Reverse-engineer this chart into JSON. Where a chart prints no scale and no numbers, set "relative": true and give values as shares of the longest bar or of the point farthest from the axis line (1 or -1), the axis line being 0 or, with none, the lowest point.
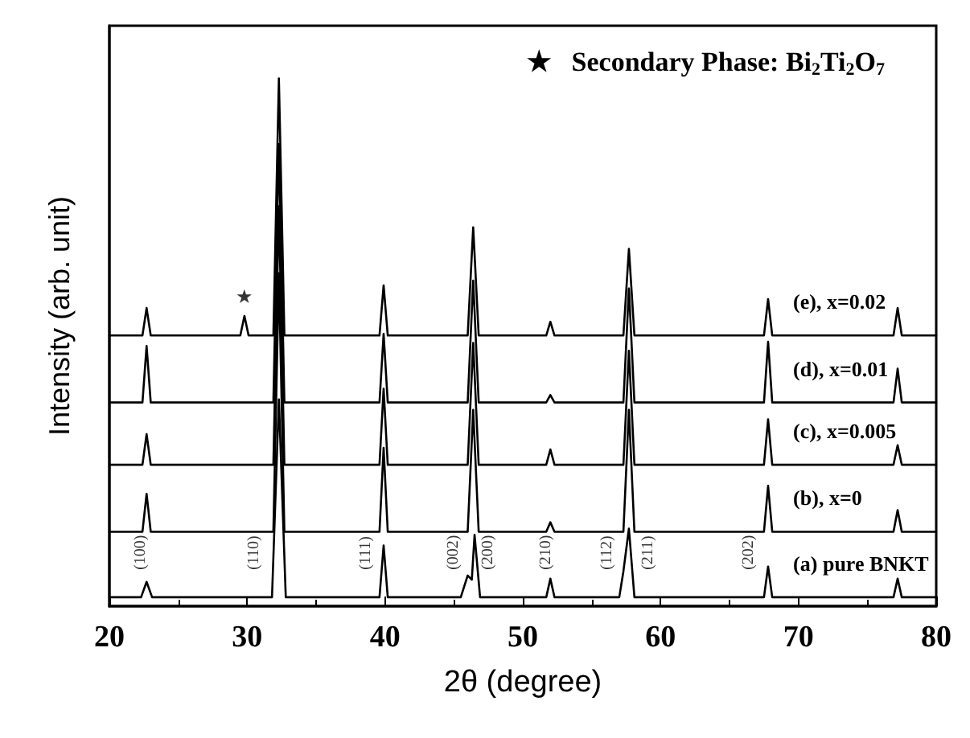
{
  "chart_data": {
    "type": "line",
    "xlabel": "2θ (degree)",
    "ylabel": "Intensity (arb. unit)",
    "xlim": [
      20,
      80
    ],
    "xticks": [
      20,
      30,
      40,
      50,
      60,
      70,
      80
    ],
    "relative": true,
    "tick_labels": "x",
    "legend": false,
    "grid": false,
    "marker": "none",
    "line_style": "solid",
    "annotations": [
      "★   Secondary Phase: Bi$_{2}$Ti$_{2}$O$_{7}$",
      {
        "text": "★",
        "x": 29.8,
        "y": 0.55
      },
      {
        "text": "(100)",
        "x": 22.3,
        "y": 0.017
      },
      {
        "text": "(110)",
        "x": 30.5,
        "y": 0.017
      },
      {
        "text": "(111)",
        "x": 38.6,
        "y": 0.017
      },
      {
        "text": "(002)",
        "x": 45.0,
        "y": 0.017
      },
      {
        "text": "(200)",
        "x": 47.5,
        "y": 0.017
      },
      {
        "text": "(210)",
        "x": 51.7,
        "y": 0.017
      },
      {
        "text": "(112)",
        "x": 56.1,
        "y": 0.017
      },
      {
        "text": "(211)",
        "x": 59.1,
        "y": 0.017
      },
      {
        "text": "(202)",
        "x": 66.4,
        "y": 0.017
      }
    ],
    "series": [
      {
        "name": "(e), x=0.02",
        "color": "#000000",
        "x": [
          20,
          22.4,
          22.7,
          23.0,
          29.5,
          29.8,
          30.1,
          31.9,
          32.3,
          32.7,
          39.6,
          39.9,
          40.2,
          46.0,
          46.4,
          46.8,
          51.7,
          52.0,
          52.3,
          57.3,
          57.7,
          58.1,
          67.5,
          67.8,
          68.1,
          76.9,
          77.2,
          77.5,
          80
        ],
        "values": [
          0.513,
          0.513,
          0.565,
          0.513,
          0.513,
          0.55,
          0.513,
          0.513,
          1.0,
          0.513,
          0.513,
          0.608,
          0.513,
          0.513,
          0.718,
          0.513,
          0.513,
          0.539,
          0.513,
          0.513,
          0.677,
          0.513,
          0.513,
          0.582,
          0.513,
          0.513,
          0.565,
          0.513,
          0.513
        ]
      },
      {
        "name": "(d), x=0.01",
        "color": "#000000",
        "x": [
          20,
          22.4,
          22.7,
          23.0,
          31.9,
          32.3,
          32.7,
          39.6,
          39.9,
          40.2,
          46.0,
          46.4,
          46.8,
          51.7,
          52.0,
          52.3,
          57.3,
          57.7,
          58.1,
          67.5,
          67.8,
          68.1,
          76.9,
          77.2,
          77.5,
          80
        ],
        "values": [
          0.386,
          0.386,
          0.493,
          0.386,
          0.386,
          0.876,
          0.386,
          0.386,
          0.516,
          0.386,
          0.386,
          0.617,
          0.386,
          0.386,
          0.4,
          0.386,
          0.386,
          0.602,
          0.386,
          0.386,
          0.501,
          0.386,
          0.386,
          0.45,
          0.386,
          0.386
        ]
      },
      {
        "name": "(c), x=0.005",
        "color": "#000000",
        "x": [
          20,
          22.4,
          22.7,
          23.0,
          31.9,
          32.3,
          32.7,
          39.6,
          39.9,
          40.2,
          46.0,
          46.4,
          46.8,
          51.7,
          52.0,
          52.3,
          57.3,
          57.7,
          58.1,
          67.5,
          67.8,
          68.1,
          76.9,
          77.2,
          77.5,
          80
        ],
        "values": [
          0.268,
          0.268,
          0.326,
          0.268,
          0.268,
          0.758,
          0.268,
          0.268,
          0.412,
          0.268,
          0.268,
          0.499,
          0.268,
          0.268,
          0.297,
          0.268,
          0.268,
          0.484,
          0.268,
          0.268,
          0.354,
          0.268,
          0.268,
          0.305,
          0.268,
          0.268
        ]
      },
      {
        "name": "(b), x=0",
        "color": "#000000",
        "x": [
          20,
          22.4,
          22.7,
          23.0,
          31.9,
          32.3,
          32.7,
          39.6,
          39.9,
          40.2,
          46.0,
          46.4,
          46.8,
          51.7,
          52.0,
          52.3,
          57.3,
          57.7,
          58.1,
          67.5,
          67.8,
          68.1,
          76.9,
          77.2,
          77.5,
          80
        ],
        "values": [
          0.141,
          0.141,
          0.213,
          0.141,
          0.141,
          0.631,
          0.141,
          0.141,
          0.3,
          0.141,
          0.141,
          0.372,
          0.141,
          0.141,
          0.159,
          0.141,
          0.141,
          0.372,
          0.141,
          0.141,
          0.228,
          0.141,
          0.141,
          0.182,
          0.141,
          0.141
        ]
      },
      {
        "name": "(a) pure BNKT",
        "color": "#000000",
        "x": [
          20,
          22.3,
          22.7,
          23.1,
          30.5,
          31.8,
          32.3,
          32.8,
          38.6,
          39.6,
          39.9,
          40.2,
          45.0,
          45.5,
          46.0,
          46.3,
          46.5,
          46.9,
          47.5,
          51.7,
          52.0,
          52.3,
          56.1,
          57.0,
          57.3,
          57.7,
          58.1,
          59.1,
          66.4,
          67.5,
          67.8,
          68.1,
          76.9,
          77.2,
          77.5,
          80
        ],
        "values": [
          0.017,
          0.017,
          0.046,
          0.017,
          0.017,
          0.017,
          0.392,
          0.017,
          0.017,
          0.017,
          0.115,
          0.017,
          0.017,
          0.017,
          0.058,
          0.05,
          0.135,
          0.017,
          0.017,
          0.017,
          0.052,
          0.017,
          0.017,
          0.017,
          0.066,
          0.147,
          0.017,
          0.017,
          0.017,
          0.017,
          0.075,
          0.017,
          0.017,
          0.052,
          0.017,
          0.017
        ]
      }
    ]
  }
}
